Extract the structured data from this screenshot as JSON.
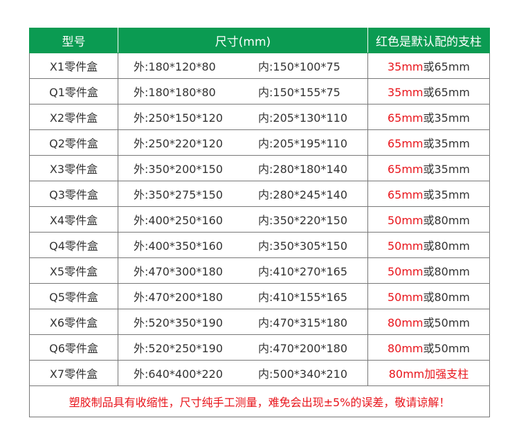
{
  "header": {
    "model": "型号",
    "size": "尺寸(mm)",
    "support": "红色是默认配的支柱"
  },
  "accent": "#0b9b52",
  "red": "#e8141b",
  "rows": [
    {
      "model": "X1零件盒",
      "outer": "外:180*120*80",
      "inner": "内:150*100*75",
      "support_red": "35mm",
      "support_rest": "或65mm"
    },
    {
      "model": "Q1零件盒",
      "outer": "外:180*180*80",
      "inner": "内:150*155*75",
      "support_red": "35mm",
      "support_rest": "或65mm"
    },
    {
      "model": "X2零件盒",
      "outer": "外:250*150*120",
      "inner": "内:205*130*110",
      "support_red": "65mm",
      "support_rest": "或35mm"
    },
    {
      "model": "Q2零件盒",
      "outer": "外:250*220*120",
      "inner": "内:205*195*110",
      "support_red": "65mm",
      "support_rest": "或35mm"
    },
    {
      "model": "X3零件盒",
      "outer": "外:350*200*150",
      "inner": "内:280*180*140",
      "support_red": "65mm",
      "support_rest": "或35mm"
    },
    {
      "model": "Q3零件盒",
      "outer": "外:350*275*150",
      "inner": "内:280*245*140",
      "support_red": "65mm",
      "support_rest": "或35mm"
    },
    {
      "model": "X4零件盒",
      "outer": "外:400*250*160",
      "inner": "内:350*220*150",
      "support_red": "50mm",
      "support_rest": "或80mm"
    },
    {
      "model": "Q4零件盒",
      "outer": "外:400*350*160",
      "inner": "内:350*305*150",
      "support_red": "50mm",
      "support_rest": "或80mm"
    },
    {
      "model": "X5零件盒",
      "outer": "外:470*300*180",
      "inner": "内:410*270*165",
      "support_red": "50mm",
      "support_rest": "或80mm"
    },
    {
      "model": "Q5零件盒",
      "outer": "外:470*200*180",
      "inner": "内:410*155*165",
      "support_red": "50mm",
      "support_rest": "或80mm"
    },
    {
      "model": "X6零件盒",
      "outer": "外:520*350*190",
      "inner": "内:470*315*180",
      "support_red": "80mm",
      "support_rest": "或50mm"
    },
    {
      "model": "Q6零件盒",
      "outer": "外:520*250*190",
      "inner": "内:470*200*180",
      "support_red": "80mm",
      "support_rest": "或50mm"
    },
    {
      "model": "X7零件盒",
      "outer": "外:640*400*220",
      "inner": "内:500*340*210",
      "support_red": "80mm加强支柱",
      "support_rest": ""
    }
  ],
  "footer": "塑胶制品具有收缩性，尺寸纯手工测量，难免会出现±5%的误差，敬请谅解！"
}
